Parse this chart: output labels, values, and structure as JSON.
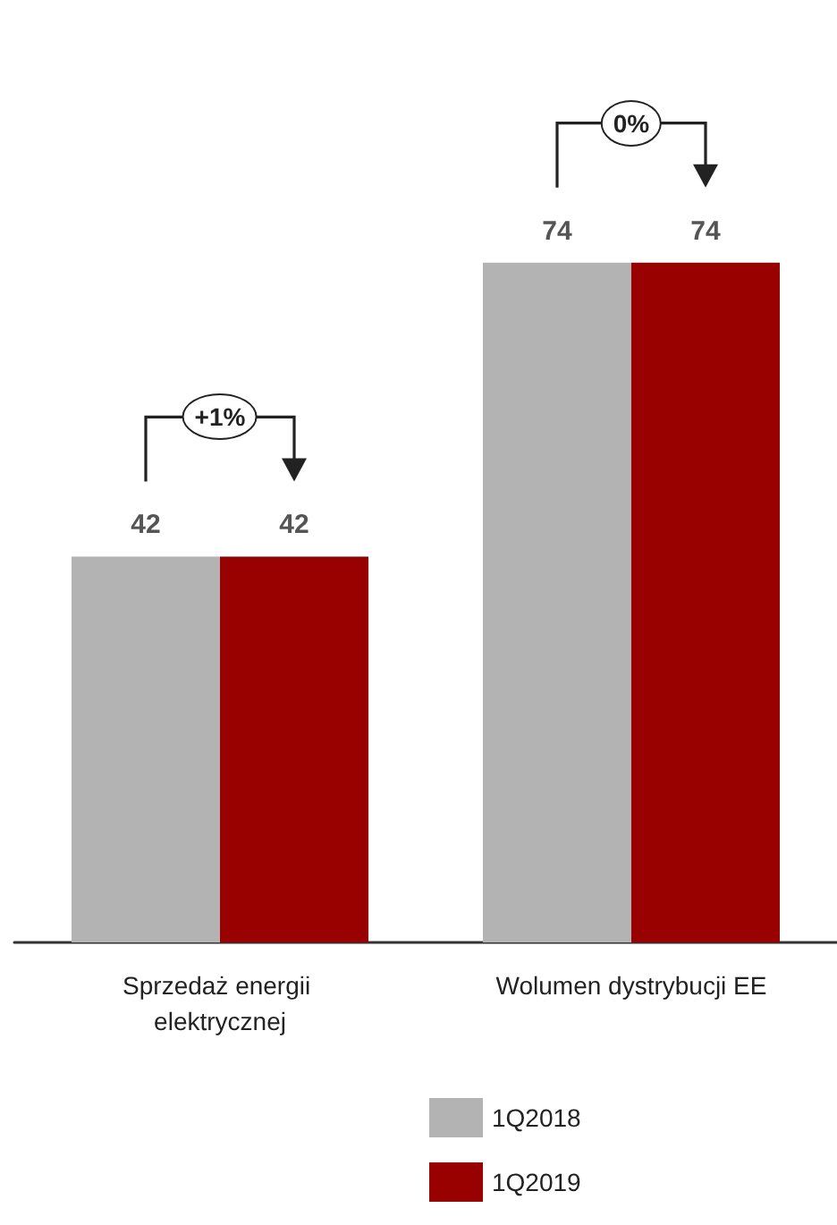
{
  "chart_data": {
    "type": "bar",
    "categories": [
      "Sprzedaż energii elektrycznej",
      "Wolumen dystrybucji EE"
    ],
    "series": [
      {
        "name": "1Q2018",
        "color": "#b3b3b3",
        "values": [
          42,
          74
        ]
      },
      {
        "name": "1Q2019",
        "color": "#990000",
        "values": [
          42,
          74
        ]
      }
    ],
    "data_labels": true,
    "legend": "bottom",
    "annotations": [
      "+1%",
      "0%"
    ]
  }
}
